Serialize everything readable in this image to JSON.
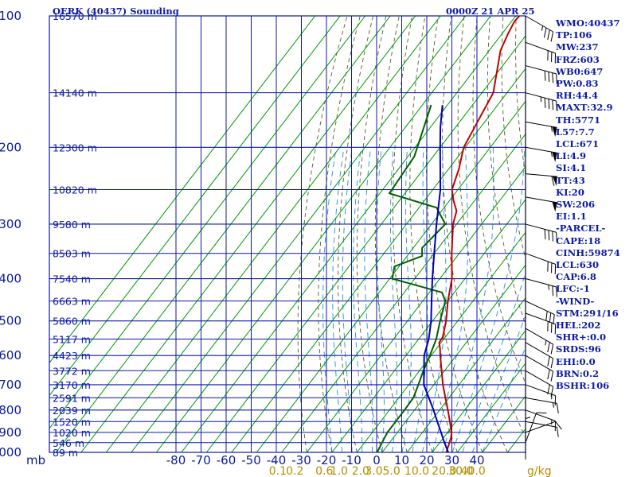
{
  "chart_data": {
    "type": "line",
    "title": "OERK (40437) Sounding",
    "time_label": "0000Z 21 APR 25",
    "pressure_unit_label": "mb",
    "mixing_ratio_unit": "g/kg",
    "pressure_levels": [
      100,
      200,
      300,
      400,
      500,
      600,
      700,
      800,
      900,
      1000
    ],
    "height_labels": [
      {
        "p": 100,
        "label": "16570 m"
      },
      {
        "p": 150,
        "label": "14140 m"
      },
      {
        "p": 200,
        "label": "12300 m"
      },
      {
        "p": 250,
        "label": "10820 m"
      },
      {
        "p": 300,
        "label": "9580 m"
      },
      {
        "p": 350,
        "label": "8503 m"
      },
      {
        "p": 400,
        "label": "7540 m"
      },
      {
        "p": 450,
        "label": "6663 m"
      },
      {
        "p": 500,
        "label": "5860 m"
      },
      {
        "p": 550,
        "label": "5117 m"
      },
      {
        "p": 600,
        "label": "4423 m"
      },
      {
        "p": 650,
        "label": "3772 m"
      },
      {
        "p": 700,
        "label": "3170 m"
      },
      {
        "p": 750,
        "label": "2591 m"
      },
      {
        "p": 800,
        "label": "2039 m"
      },
      {
        "p": 850,
        "label": "1520 m"
      },
      {
        "p": 900,
        "label": "1020 m"
      },
      {
        "p": 950,
        "label": "546 m"
      },
      {
        "p": 1000,
        "label": "89 m"
      }
    ],
    "temperature_ticks": [
      -80,
      -70,
      -60,
      -50,
      -40,
      -30,
      -20,
      -10,
      0,
      10,
      20,
      30,
      40
    ],
    "mixing_ratio_labels": [
      "0.1",
      "0.2",
      "0.6",
      "1.0",
      "2.0",
      "3.0",
      "5.0",
      "10.0",
      "20.0",
      "30.0",
      "40.0"
    ],
    "mixing_ratio_values": [
      0.1,
      0.2,
      0.6,
      1.0,
      2.0,
      3.0,
      5.0,
      10.0,
      20.0,
      30.0,
      40.0
    ],
    "series": [
      {
        "name": "Temperature",
        "color": "#c00000",
        "points": [
          [
            1000,
            25.6
          ],
          [
            925,
            23.0
          ],
          [
            900,
            21.6
          ],
          [
            850,
            17.6
          ],
          [
            800,
            13.3
          ],
          [
            750,
            8.6
          ],
          [
            700,
            3.6
          ],
          [
            650,
            -1.2
          ],
          [
            600,
            -6.4
          ],
          [
            580,
            -8.4
          ],
          [
            560,
            -10.8
          ],
          [
            545,
            -11.0
          ],
          [
            500,
            -14.6
          ],
          [
            450,
            -20.0
          ],
          [
            400,
            -25.2
          ],
          [
            350,
            -33.0
          ],
          [
            300,
            -41.4
          ],
          [
            280,
            -44.0
          ],
          [
            265,
            -48.4
          ],
          [
            250,
            -52.4
          ],
          [
            225,
            -55.8
          ],
          [
            200,
            -60.6
          ],
          [
            150,
            -65.5
          ],
          [
            120,
            -75.5
          ],
          [
            110,
            -77.6
          ],
          [
            103,
            -78.8
          ],
          [
            100,
            -78.5
          ]
        ]
      },
      {
        "name": "Dewpoint",
        "color": "#006000",
        "points": [
          [
            1000,
            -2.0
          ],
          [
            950,
            -3.0
          ],
          [
            900,
            -4.0
          ],
          [
            850,
            -4.0
          ],
          [
            800,
            -4.0
          ],
          [
            750,
            -4.2
          ],
          [
            700,
            -6.2
          ],
          [
            650,
            -8.5
          ],
          [
            600,
            -10.5
          ],
          [
            550,
            -13.0
          ],
          [
            500,
            -17.0
          ],
          [
            450,
            -21.0
          ],
          [
            430,
            -25.0
          ],
          [
            400,
            -49.0
          ],
          [
            375,
            -51.8
          ],
          [
            355,
            -44.0
          ],
          [
            340,
            -46.5
          ],
          [
            300,
            -44.5
          ],
          [
            275,
            -53.0
          ],
          [
            255,
            -76.2
          ],
          [
            210,
            -77.5
          ],
          [
            160,
            -86.5
          ]
        ]
      },
      {
        "name": "Parcel",
        "color": "#0000b0",
        "points": [
          [
            1000,
            26.4
          ],
          [
            950,
            21.9
          ],
          [
            900,
            17.4
          ],
          [
            850,
            12.6
          ],
          [
            800,
            7.6
          ],
          [
            700,
            -4.0
          ],
          [
            600,
            -12.8
          ],
          [
            550,
            -16.0
          ],
          [
            500,
            -20.6
          ],
          [
            450,
            -26.5
          ],
          [
            400,
            -33.0
          ],
          [
            350,
            -40.0
          ],
          [
            300,
            -48.0
          ],
          [
            250,
            -57.0
          ],
          [
            200,
            -70.0
          ],
          [
            180,
            -76.0
          ],
          [
            160,
            -82.0
          ]
        ]
      }
    ],
    "winds": [
      {
        "p": 100,
        "dir": 300,
        "spd": 35
      },
      {
        "p": 115,
        "dir": 290,
        "spd": 30
      },
      {
        "p": 130,
        "dir": 285,
        "spd": 40
      },
      {
        "p": 150,
        "dir": 285,
        "spd": 45
      },
      {
        "p": 175,
        "dir": 280,
        "spd": 55
      },
      {
        "p": 200,
        "dir": 280,
        "spd": 55
      },
      {
        "p": 230,
        "dir": 275,
        "spd": 60
      },
      {
        "p": 260,
        "dir": 280,
        "spd": 50
      },
      {
        "p": 300,
        "dir": 285,
        "spd": 40
      },
      {
        "p": 350,
        "dir": 290,
        "spd": 30
      },
      {
        "p": 400,
        "dir": 285,
        "spd": 25
      },
      {
        "p": 450,
        "dir": 295,
        "spd": 30
      },
      {
        "p": 480,
        "dir": 290,
        "spd": 30
      },
      {
        "p": 520,
        "dir": 300,
        "spd": 25
      },
      {
        "p": 560,
        "dir": 300,
        "spd": 20
      },
      {
        "p": 600,
        "dir": 300,
        "spd": 20
      },
      {
        "p": 650,
        "dir": 300,
        "spd": 20
      },
      {
        "p": 700,
        "dir": 290,
        "spd": 15
      },
      {
        "p": 750,
        "dir": 280,
        "spd": 15
      },
      {
        "p": 800,
        "dir": 290,
        "spd": 15
      },
      {
        "p": 850,
        "dir": 280,
        "spd": 10
      },
      {
        "p": 900,
        "dir": 250,
        "spd": 10
      },
      {
        "p": 950,
        "dir": 200,
        "spd": 10
      },
      {
        "p": 990,
        "dir": 180,
        "spd": 5
      }
    ],
    "grid": true
  },
  "indices": [
    "WMO:40437",
    "TP:106",
    "MW:237",
    "FRZ:603",
    "WB0:647",
    "PW:0.83",
    "RH:44.4",
    "MAXT:32.9",
    "TH:5771",
    "L57:7.7",
    "LCL:671",
    "LI:4.9",
    "SI:4.1",
    "TT:43",
    "KI:20",
    "SW:206",
    "EI:1.1",
    "-PARCEL-",
    "CAPE:18",
    "CINH:59874",
    "LCL:630",
    "CAP:6.8",
    "LFC:-1",
    "-WIND-",
    "STM:291/16",
    "HEL:202",
    "SHR+:0.0",
    "SRDS:96",
    "EHI:0.0",
    "BRN:0.2",
    "BSHR:106"
  ],
  "colors": {
    "grid": "#0b1aa0",
    "isotherm": "#009900",
    "dry_adiabat": "#5a5a2a",
    "moist_adiabat": "#1e8fd8",
    "temperature": "#c00000",
    "dewpoint": "#006000",
    "parcel": "#0000b0",
    "axis_labels": "#0b1aa0",
    "mixing_labels": "#b39000"
  }
}
